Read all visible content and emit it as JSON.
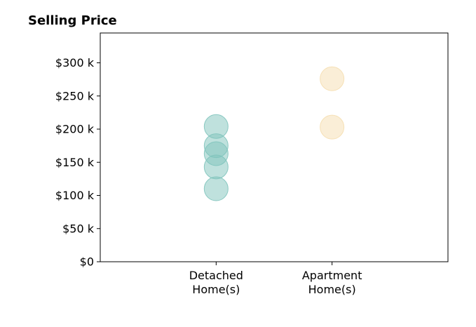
{
  "chart_data": {
    "type": "scatter",
    "title": "Selling Price",
    "xlabel": "",
    "ylabel": "",
    "categories": [
      "Detached\nHome(s)",
      "Apartment\nHome(s)"
    ],
    "xlim": [
      -1,
      2
    ],
    "ylim": [
      0,
      345000
    ],
    "yticks": [
      {
        "value": 0,
        "label": "$0"
      },
      {
        "value": 50000,
        "label": "$50 k"
      },
      {
        "value": 100000,
        "label": "$100 k"
      },
      {
        "value": 150000,
        "label": "$150 k"
      },
      {
        "value": 200000,
        "label": "$200 k"
      },
      {
        "value": 250000,
        "label": "$250 k"
      },
      {
        "value": 300000,
        "label": "$300 k"
      }
    ],
    "series": [
      {
        "category": 0,
        "color": "#80c4bc",
        "values": [
          110000,
          143000,
          163000,
          175000,
          204000
        ]
      },
      {
        "category": 1,
        "color": "#f5deaf",
        "values": [
          203000,
          276000
        ]
      }
    ],
    "marker_alpha": 0.5,
    "grid": false,
    "legend": "none"
  }
}
